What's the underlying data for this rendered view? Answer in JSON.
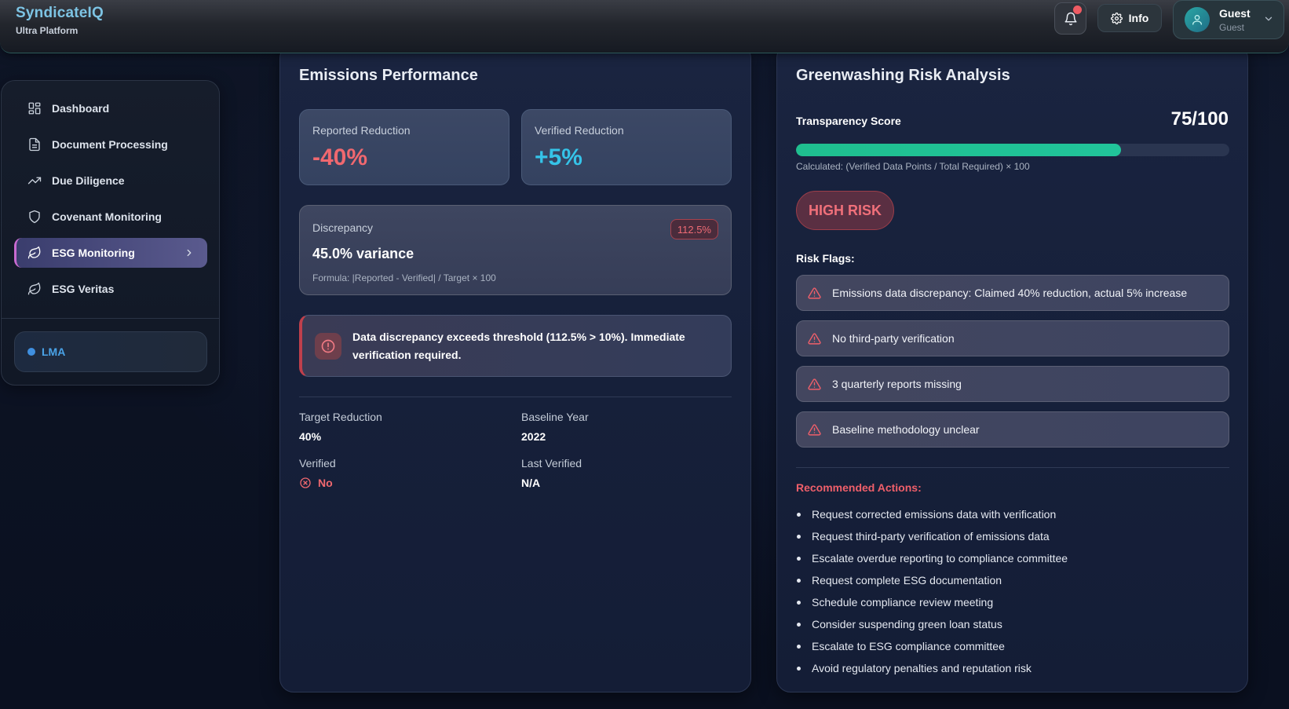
{
  "brand": {
    "name": "SyndicateIQ",
    "subtitle": "Ultra Platform"
  },
  "header": {
    "info_label": "Info",
    "user": {
      "name": "Guest",
      "role": "Guest"
    },
    "notification_indicator": true
  },
  "sidebar": {
    "items": [
      {
        "label": "Dashboard",
        "icon": "grid-icon"
      },
      {
        "label": "Document Processing",
        "icon": "document-icon"
      },
      {
        "label": "Due Diligence",
        "icon": "trending-up-icon"
      },
      {
        "label": "Covenant Monitoring",
        "icon": "shield-icon"
      },
      {
        "label": "ESG Monitoring",
        "icon": "leaf-icon",
        "active": true
      },
      {
        "label": "ESG Veritas",
        "icon": "leaf-icon"
      }
    ],
    "footer_label": "LMA"
  },
  "emissions": {
    "title": "Emissions Performance",
    "reported": {
      "label": "Reported Reduction",
      "value": "-40%"
    },
    "verified": {
      "label": "Verified Reduction",
      "value": "+5%"
    },
    "discrepancy": {
      "label": "Discrepancy",
      "badge": "112.5%",
      "value": "45.0% variance",
      "formula": "Formula: |Reported - Verified| / Target × 100"
    },
    "alert": "Data discrepancy exceeds threshold (112.5% > 10%). Immediate verification required.",
    "details": {
      "target_label": "Target Reduction",
      "target_value": "40%",
      "baseline_label": "Baseline Year",
      "baseline_value": "2022",
      "verified_label": "Verified",
      "verified_value": "No",
      "last_verified_label": "Last Verified",
      "last_verified_value": "N/A"
    }
  },
  "greenwashing": {
    "title": "Greenwashing Risk Analysis",
    "transparency_label": "Transparency Score",
    "transparency_score": "75/100",
    "transparency_fraction": 0.75,
    "calc_note": "Calculated: (Verified Data Points / Total Required) × 100",
    "risk_level": "HIGH RISK",
    "flags_title": "Risk Flags:",
    "flags": [
      "Emissions data discrepancy: Claimed 40% reduction, actual 5% increase",
      "No third-party verification",
      "3 quarterly reports missing",
      "Baseline methodology unclear"
    ],
    "actions_title": "Recommended Actions:",
    "actions": [
      "Request corrected emissions data with verification",
      "Request third-party verification of emissions data",
      "Escalate overdue reporting to compliance committee",
      "Request complete ESG documentation",
      "Schedule compliance review meeting",
      "Consider suspending green loan status",
      "Escalate to ESG compliance committee",
      "Avoid regulatory penalties and reputation risk"
    ]
  },
  "colors": {
    "negative": "#f0686f",
    "positive": "#35c3e8",
    "progress": "#1fbf8f",
    "danger": "#ef5f6a"
  }
}
